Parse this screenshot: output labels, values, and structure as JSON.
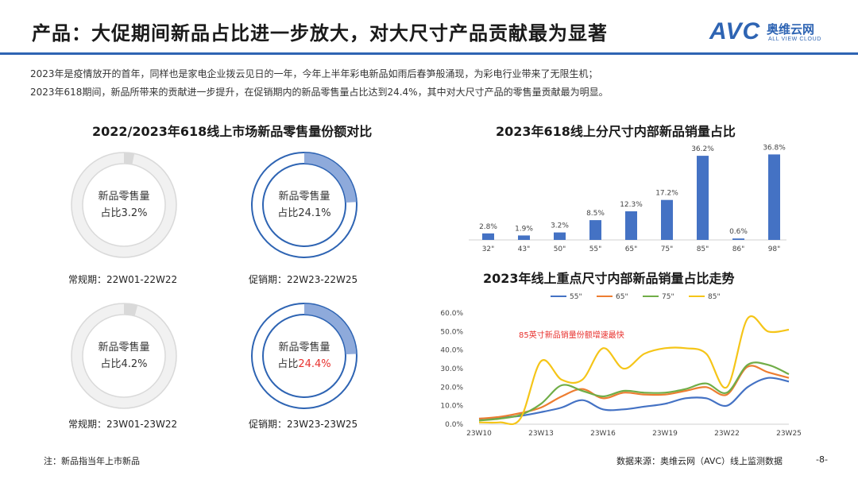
{
  "header": {
    "title": "产品：大促期间新品占比进一步放大，对大尺寸产品贡献最为显著",
    "logo_abbr": "AVC",
    "logo_cn": "奥维云网",
    "logo_en": "ALL VIEW CLOUD"
  },
  "intro": {
    "line1": "2023年是疫情放开的首年，同样也是家电企业拨云见日的一年，今年上半年彩电新品如雨后春笋般涌现，为彩电行业带来了无限生机；",
    "line2": "2023年618期间，新品所带来的贡献进一步提升，在促销期内的新品零售量占比达到24.4%，其中对大尺寸产品的零售量贡献最为明显。"
  },
  "left_section": {
    "title": "2022/2023年618线上市场新品零售量份额对比",
    "donuts": [
      {
        "line1": "新品零售量",
        "prefix": "占比",
        "value": "3.2%",
        "share": 3.2,
        "period": "常规期：22W01-22W22",
        "style": "gray",
        "highlight": false
      },
      {
        "line1": "新品零售量",
        "prefix": "占比",
        "value": "24.1%",
        "share": 24.1,
        "period": "促销期：22W23-22W25",
        "style": "blue",
        "highlight": false
      },
      {
        "line1": "新品零售量",
        "prefix": "占比",
        "value": "4.2%",
        "share": 4.2,
        "period": "常规期：23W01-23W22",
        "style": "gray",
        "highlight": false
      },
      {
        "line1": "新品零售量",
        "prefix": "占比",
        "value": "24.4%",
        "share": 24.4,
        "period": "促销期：23W23-23W25",
        "style": "blue",
        "highlight": true
      }
    ]
  },
  "colors": {
    "primary_blue": "#2e64b3",
    "bar_blue": "#4472c4",
    "donut_light_blue": "#8eaadb",
    "donut_gray": "#d9d9d9",
    "red_text": "#e8312e"
  },
  "chart_data": [
    {
      "type": "bar",
      "title": "2023年618线上分尺寸内部新品销量占比",
      "categories": [
        "32\"",
        "43\"",
        "50\"",
        "55\"",
        "65\"",
        "75\"",
        "85\"",
        "86\"",
        "98\""
      ],
      "values": [
        2.8,
        1.9,
        3.2,
        8.5,
        12.3,
        17.2,
        36.2,
        0.6,
        36.8
      ],
      "value_labels": [
        "2.8%",
        "1.9%",
        "3.2%",
        "8.5%",
        "12.3%",
        "17.2%",
        "36.2%",
        "0.6%",
        "36.8%"
      ],
      "ylim": [
        0,
        40
      ],
      "color": "#4472c4"
    },
    {
      "type": "line",
      "title": "2023年线上重点尺寸内部新品销量占比走势",
      "x": [
        "23W10",
        "23W11",
        "23W12",
        "23W13",
        "23W14",
        "23W15",
        "23W16",
        "23W17",
        "23W18",
        "23W19",
        "23W20",
        "23W21",
        "23W22",
        "23W23",
        "23W24",
        "23W25"
      ],
      "x_tick_labels": [
        "23W10",
        "23W13",
        "23W16",
        "23W19",
        "23W22",
        "23W25"
      ],
      "y_ticks": [
        "0.0%",
        "10.0%",
        "20.0%",
        "30.0%",
        "40.0%",
        "50.0%",
        "60.0%"
      ],
      "ylim": [
        0,
        60
      ],
      "legend_position": "top",
      "annotation": "85英寸新品销量份额增速最快",
      "series": [
        {
          "name": "55\"",
          "color": "#4472c4",
          "values": [
            3,
            3.5,
            4.5,
            6.5,
            9,
            13,
            8,
            8,
            9.5,
            11,
            14,
            14,
            10,
            20,
            25,
            23
          ]
        },
        {
          "name": "65\"",
          "color": "#ed7d31",
          "values": [
            3,
            4,
            6,
            9,
            15,
            19,
            14,
            17,
            16,
            16,
            18,
            20,
            16,
            31,
            28,
            25
          ]
        },
        {
          "name": "75\"",
          "color": "#70ad47",
          "values": [
            2,
            3,
            5,
            11,
            21,
            18,
            15,
            18,
            17,
            17,
            19,
            22,
            17,
            32,
            32,
            27
          ]
        },
        {
          "name": "85\"",
          "color": "#f5c518",
          "values": [
            1,
            1,
            3,
            34,
            24,
            24,
            41,
            30,
            38,
            41,
            41,
            38,
            20,
            57,
            50,
            51
          ]
        }
      ]
    }
  ],
  "footer": {
    "note": "注：新品指当年上市新品",
    "source": "数据来源：奥维云网（AVC）线上监测数据",
    "page": "-8-"
  }
}
